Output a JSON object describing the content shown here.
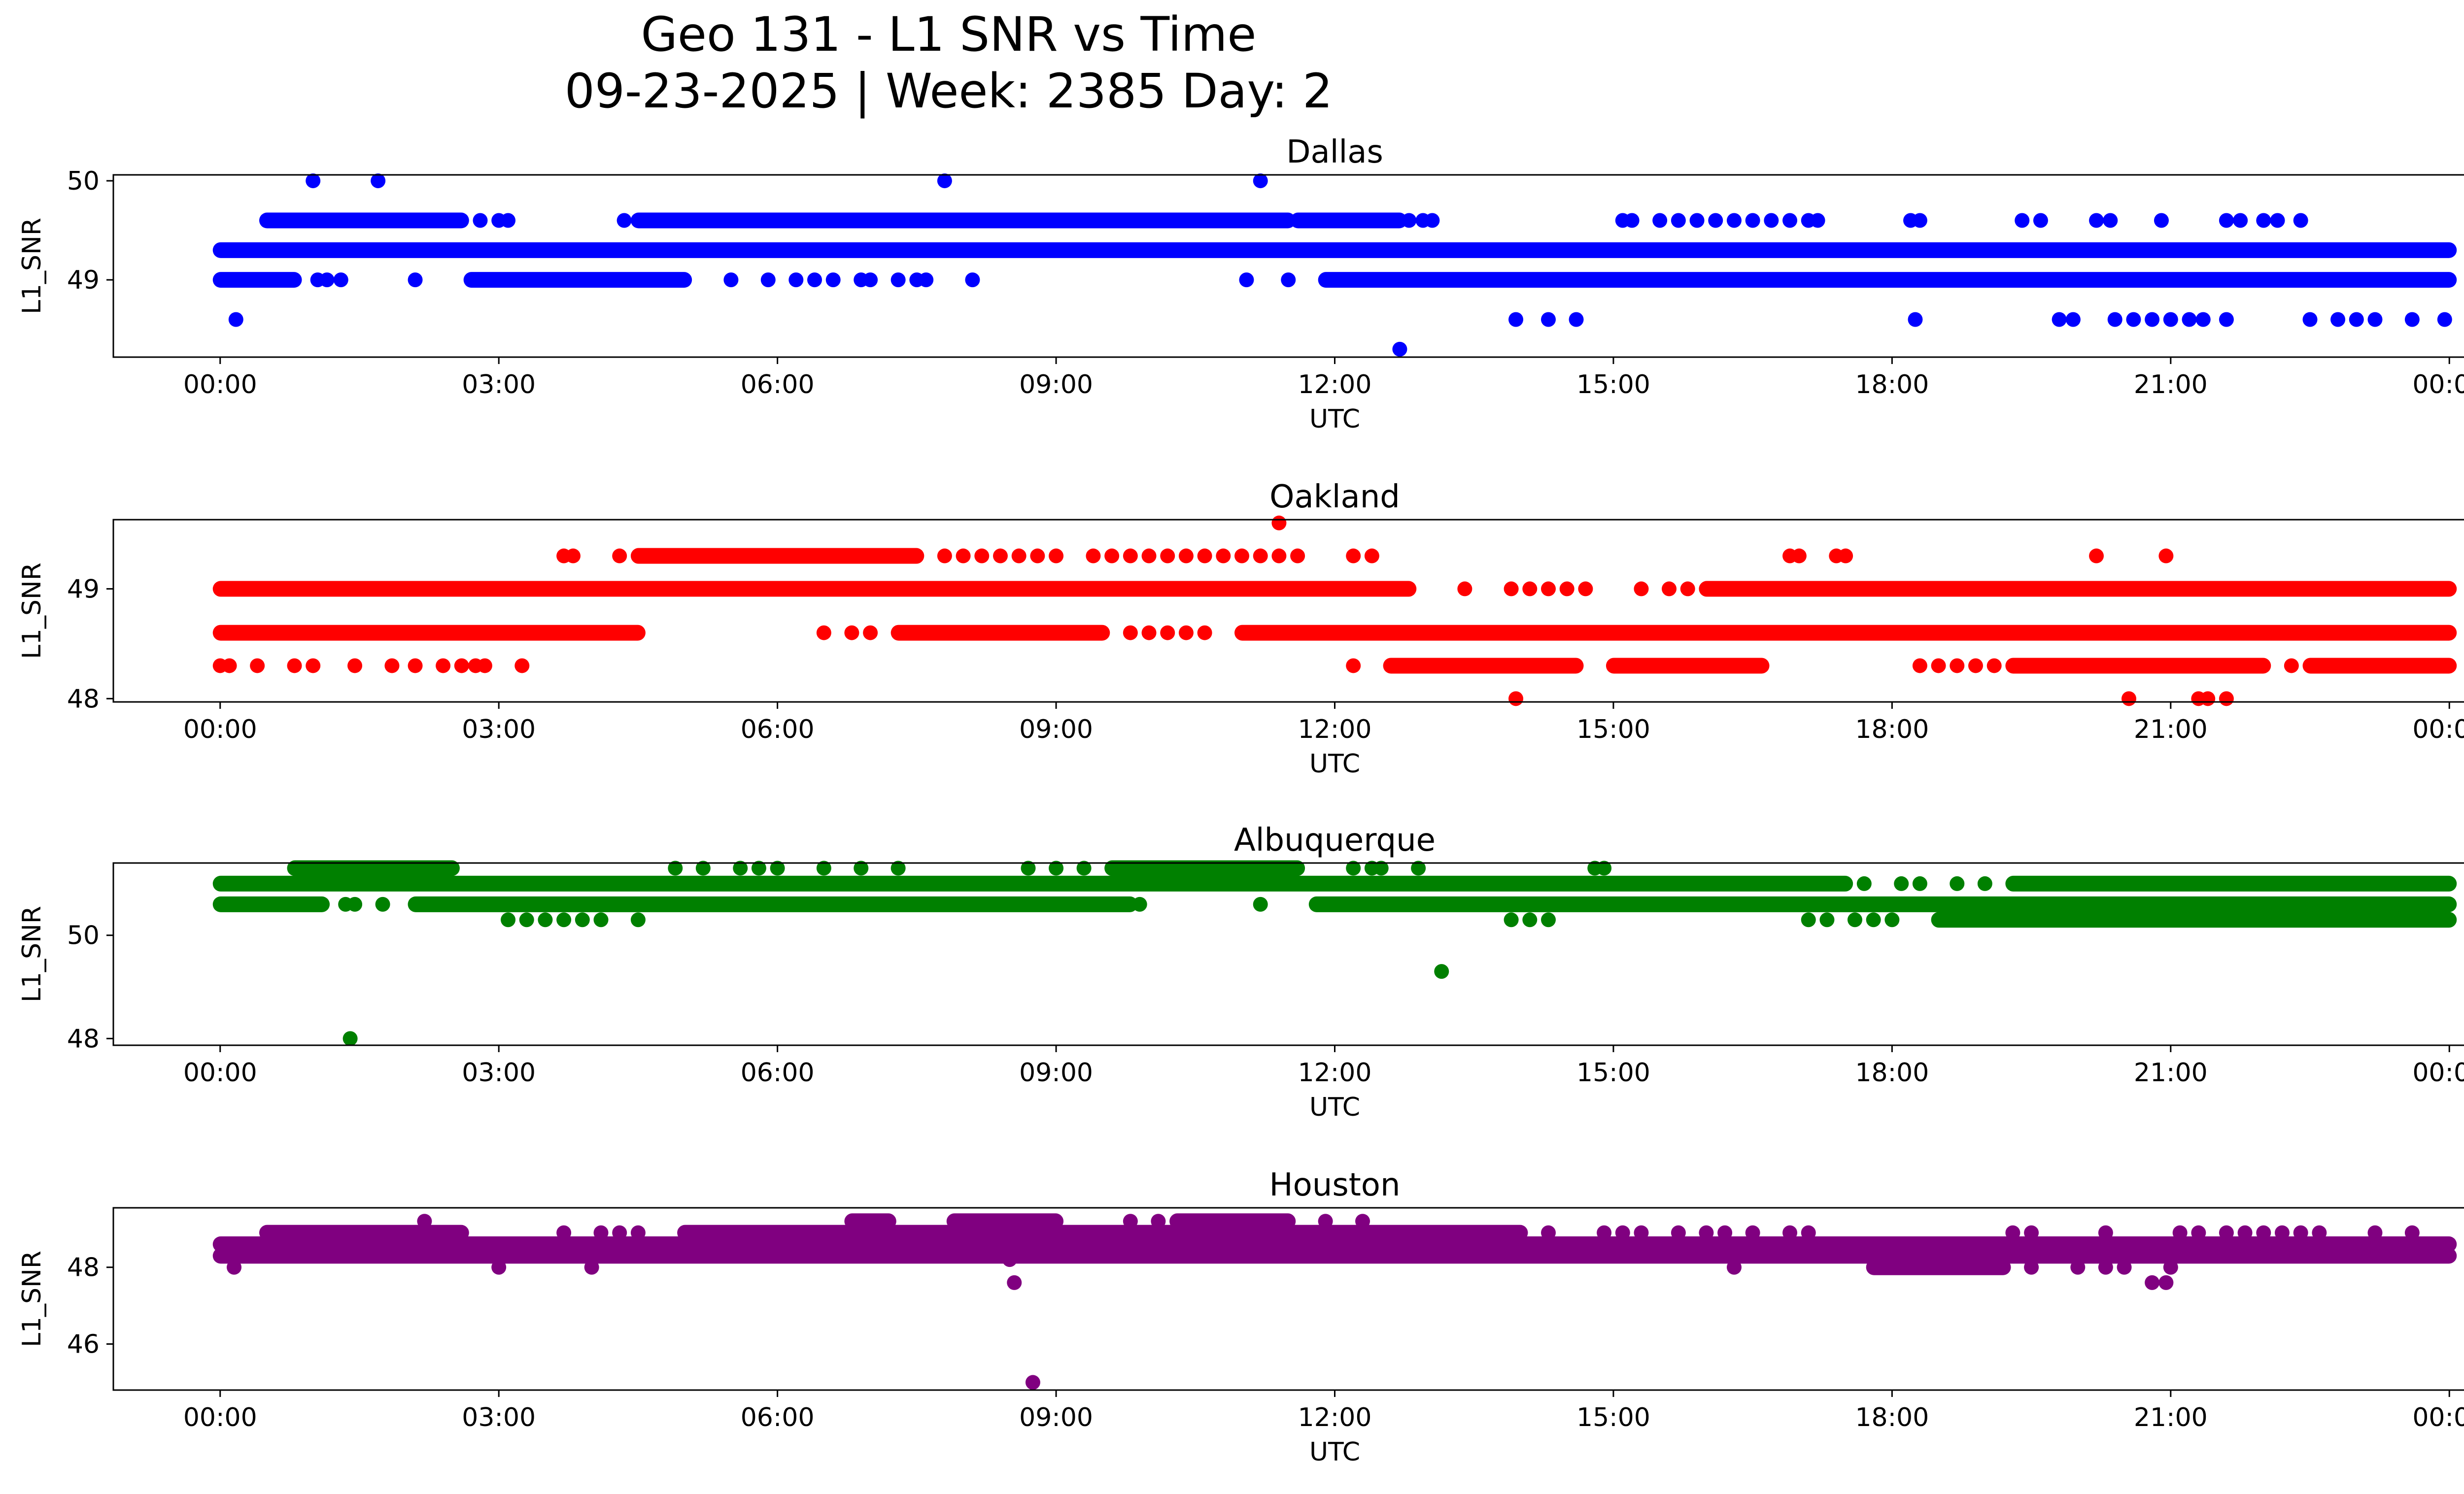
{
  "figure": {
    "title_line1": "Geo 131 - L1 SNR vs Time",
    "title_line2": "09-23-2025 | Week: 2385 Day: 2"
  },
  "chart_data": [
    {
      "type": "scatter",
      "title": "Dallas",
      "xlabel": "UTC",
      "ylabel": "L1_SNR",
      "color": "#0000ff",
      "x_unit": "hours UTC",
      "xlim": [
        -1.15,
        25.15
      ],
      "ylim": [
        48.22,
        50.06
      ],
      "yticks": [
        49,
        50
      ],
      "ytick_labels": [
        "49",
        "50"
      ],
      "xticks": [
        0,
        3,
        6,
        9,
        12,
        15,
        18,
        21,
        24
      ],
      "xtick_labels": [
        "00:00",
        "03:00",
        "06:00",
        "09:00",
        "12:00",
        "15:00",
        "18:00",
        "21:00",
        "00:00"
      ],
      "bands": [
        {
          "y": 49.3,
          "x": [
            0,
            24
          ]
        },
        {
          "y": 49.0,
          "x": [
            0,
            0.8
          ]
        },
        {
          "y": 49.0,
          "x": [
            2.7,
            5.0
          ]
        },
        {
          "y": 49.0,
          "x": [
            11.9,
            24
          ]
        },
        {
          "y": 49.6,
          "x": [
            0.5,
            2.6
          ]
        },
        {
          "y": 49.6,
          "x": [
            4.5,
            11.5
          ]
        },
        {
          "y": 49.6,
          "x": [
            11.6,
            12.7
          ]
        }
      ],
      "points": [
        [
          0.17,
          48.6
        ],
        [
          1.0,
          50.0
        ],
        [
          1.7,
          50.0
        ],
        [
          7.8,
          50.0
        ],
        [
          11.2,
          50.0
        ],
        [
          12.7,
          48.3
        ],
        [
          1.05,
          49.0
        ],
        [
          1.15,
          49.0
        ],
        [
          1.3,
          49.0
        ],
        [
          2.1,
          49.0
        ],
        [
          5.5,
          49.0
        ],
        [
          5.9,
          49.0
        ],
        [
          6.2,
          49.0
        ],
        [
          6.4,
          49.0
        ],
        [
          6.6,
          49.0
        ],
        [
          6.9,
          49.0
        ],
        [
          7.0,
          49.0
        ],
        [
          7.3,
          49.0
        ],
        [
          7.5,
          49.0
        ],
        [
          7.6,
          49.0
        ],
        [
          8.1,
          49.0
        ],
        [
          11.05,
          49.0
        ],
        [
          11.5,
          49.0
        ],
        [
          2.8,
          49.6
        ],
        [
          3.0,
          49.6
        ],
        [
          3.1,
          49.6
        ],
        [
          4.35,
          49.6
        ],
        [
          12.8,
          49.6
        ],
        [
          12.95,
          49.6
        ],
        [
          13.05,
          49.6
        ],
        [
          15.1,
          49.6
        ],
        [
          15.2,
          49.6
        ],
        [
          15.5,
          49.6
        ],
        [
          15.7,
          49.6
        ],
        [
          15.9,
          49.6
        ],
        [
          16.1,
          49.6
        ],
        [
          16.3,
          49.6
        ],
        [
          16.5,
          49.6
        ],
        [
          16.7,
          49.6
        ],
        [
          16.9,
          49.6
        ],
        [
          17.1,
          49.6
        ],
        [
          17.2,
          49.6
        ],
        [
          18.2,
          49.6
        ],
        [
          18.3,
          49.6
        ],
        [
          19.4,
          49.6
        ],
        [
          19.6,
          49.6
        ],
        [
          20.2,
          49.6
        ],
        [
          20.35,
          49.6
        ],
        [
          20.9,
          49.6
        ],
        [
          21.6,
          49.6
        ],
        [
          21.75,
          49.6
        ],
        [
          22.0,
          49.6
        ],
        [
          22.15,
          49.6
        ],
        [
          22.4,
          49.6
        ],
        [
          13.95,
          48.6
        ],
        [
          14.3,
          48.6
        ],
        [
          14.6,
          48.6
        ],
        [
          18.25,
          48.6
        ],
        [
          19.8,
          48.6
        ],
        [
          19.95,
          48.6
        ],
        [
          20.4,
          48.6
        ],
        [
          20.6,
          48.6
        ],
        [
          20.8,
          48.6
        ],
        [
          21.0,
          48.6
        ],
        [
          21.2,
          48.6
        ],
        [
          21.35,
          48.6
        ],
        [
          21.6,
          48.6
        ],
        [
          22.5,
          48.6
        ],
        [
          22.8,
          48.6
        ],
        [
          23.0,
          48.6
        ],
        [
          23.2,
          48.6
        ],
        [
          23.6,
          48.6
        ],
        [
          23.95,
          48.6
        ]
      ]
    },
    {
      "type": "scatter",
      "title": "Oakland",
      "xlabel": "UTC",
      "ylabel": "L1_SNR",
      "color": "#ff0000",
      "x_unit": "hours UTC",
      "xlim": [
        -1.15,
        25.15
      ],
      "ylim": [
        47.97,
        49.63
      ],
      "yticks": [
        48,
        49
      ],
      "ytick_labels": [
        "48",
        "49"
      ],
      "xticks": [
        0,
        3,
        6,
        9,
        12,
        15,
        18,
        21,
        24
      ],
      "xtick_labels": [
        "00:00",
        "03:00",
        "06:00",
        "09:00",
        "12:00",
        "15:00",
        "18:00",
        "21:00",
        "00:00"
      ],
      "bands": [
        {
          "y": 49.0,
          "x": [
            0,
            12.8
          ]
        },
        {
          "y": 49.0,
          "x": [
            16.0,
            24
          ]
        },
        {
          "y": 48.6,
          "x": [
            0,
            4.5
          ]
        },
        {
          "y": 48.6,
          "x": [
            7.3,
            9.5
          ]
        },
        {
          "y": 48.6,
          "x": [
            11.0,
            24
          ]
        },
        {
          "y": 49.3,
          "x": [
            4.5,
            7.5
          ]
        },
        {
          "y": 48.3,
          "x": [
            12.6,
            14.6
          ]
        },
        {
          "y": 48.3,
          "x": [
            15.0,
            16.6
          ]
        },
        {
          "y": 48.3,
          "x": [
            19.3,
            22.0
          ]
        },
        {
          "y": 48.3,
          "x": [
            22.5,
            24
          ]
        }
      ],
      "points": [
        [
          11.4,
          49.6
        ],
        [
          3.7,
          49.3
        ],
        [
          3.8,
          49.3
        ],
        [
          4.3,
          49.3
        ],
        [
          7.8,
          49.3
        ],
        [
          8.0,
          49.3
        ],
        [
          8.2,
          49.3
        ],
        [
          8.4,
          49.3
        ],
        [
          8.6,
          49.3
        ],
        [
          8.8,
          49.3
        ],
        [
          9.0,
          49.3
        ],
        [
          9.4,
          49.3
        ],
        [
          9.6,
          49.3
        ],
        [
          9.8,
          49.3
        ],
        [
          10.0,
          49.3
        ],
        [
          10.2,
          49.3
        ],
        [
          10.4,
          49.3
        ],
        [
          10.6,
          49.3
        ],
        [
          10.8,
          49.3
        ],
        [
          11.0,
          49.3
        ],
        [
          11.2,
          49.3
        ],
        [
          11.4,
          49.3
        ],
        [
          11.6,
          49.3
        ],
        [
          12.2,
          49.3
        ],
        [
          12.4,
          49.3
        ],
        [
          16.9,
          49.3
        ],
        [
          17.0,
          49.3
        ],
        [
          17.4,
          49.3
        ],
        [
          17.5,
          49.3
        ],
        [
          20.2,
          49.3
        ],
        [
          20.95,
          49.3
        ],
        [
          13.4,
          49.0
        ],
        [
          13.9,
          49.0
        ],
        [
          14.1,
          49.0
        ],
        [
          14.3,
          49.0
        ],
        [
          14.5,
          49.0
        ],
        [
          14.7,
          49.0
        ],
        [
          15.3,
          49.0
        ],
        [
          15.6,
          49.0
        ],
        [
          15.8,
          49.0
        ],
        [
          6.5,
          48.6
        ],
        [
          6.8,
          48.6
        ],
        [
          7.0,
          48.6
        ],
        [
          9.8,
          48.6
        ],
        [
          10.0,
          48.6
        ],
        [
          10.2,
          48.6
        ],
        [
          10.4,
          48.6
        ],
        [
          10.6,
          48.6
        ],
        [
          0.0,
          48.3
        ],
        [
          0.1,
          48.3
        ],
        [
          0.4,
          48.3
        ],
        [
          0.8,
          48.3
        ],
        [
          1.0,
          48.3
        ],
        [
          1.45,
          48.3
        ],
        [
          1.85,
          48.3
        ],
        [
          2.1,
          48.3
        ],
        [
          2.4,
          48.3
        ],
        [
          2.6,
          48.3
        ],
        [
          2.75,
          48.3
        ],
        [
          2.85,
          48.3
        ],
        [
          3.25,
          48.3
        ],
        [
          12.2,
          48.3
        ],
        [
          18.3,
          48.3
        ],
        [
          18.5,
          48.3
        ],
        [
          18.7,
          48.3
        ],
        [
          18.9,
          48.3
        ],
        [
          19.1,
          48.3
        ],
        [
          22.3,
          48.3
        ],
        [
          13.95,
          48.0
        ],
        [
          20.55,
          48.0
        ],
        [
          21.3,
          48.0
        ],
        [
          21.4,
          48.0
        ],
        [
          21.6,
          48.0
        ]
      ]
    },
    {
      "type": "scatter",
      "title": "Albuquerque",
      "xlabel": "UTC",
      "ylabel": "L1_SNR",
      "color": "#008000",
      "x_unit": "hours UTC",
      "xlim": [
        -1.15,
        25.15
      ],
      "ylim": [
        47.87,
        51.4
      ],
      "yticks": [
        48,
        50
      ],
      "ytick_labels": [
        "48",
        "50"
      ],
      "xticks": [
        0,
        3,
        6,
        9,
        12,
        15,
        18,
        21,
        24
      ],
      "xtick_labels": [
        "00:00",
        "03:00",
        "06:00",
        "09:00",
        "12:00",
        "15:00",
        "18:00",
        "21:00",
        "00:00"
      ],
      "bands": [
        {
          "y": 51.0,
          "x": [
            0,
            17.5
          ]
        },
        {
          "y": 51.0,
          "x": [
            19.3,
            24
          ]
        },
        {
          "y": 50.6,
          "x": [
            0,
            1.1
          ]
        },
        {
          "y": 50.6,
          "x": [
            2.1,
            9.8
          ]
        },
        {
          "y": 50.6,
          "x": [
            11.8,
            24
          ]
        },
        {
          "y": 50.3,
          "x": [
            18.5,
            24
          ]
        },
        {
          "y": 51.3,
          "x": [
            0.8,
            2.5
          ]
        },
        {
          "y": 51.3,
          "x": [
            9.6,
            11.6
          ]
        }
      ],
      "points": [
        [
          1.4,
          48.0
        ],
        [
          13.15,
          49.3
        ],
        [
          1.35,
          50.6
        ],
        [
          1.45,
          50.6
        ],
        [
          1.75,
          50.6
        ],
        [
          9.9,
          50.6
        ],
        [
          11.2,
          50.6
        ],
        [
          3.1,
          50.3
        ],
        [
          3.3,
          50.3
        ],
        [
          3.5,
          50.3
        ],
        [
          3.7,
          50.3
        ],
        [
          3.9,
          50.3
        ],
        [
          4.1,
          50.3
        ],
        [
          4.5,
          50.3
        ],
        [
          13.9,
          50.3
        ],
        [
          14.1,
          50.3
        ],
        [
          14.3,
          50.3
        ],
        [
          17.1,
          50.3
        ],
        [
          17.3,
          50.3
        ],
        [
          17.6,
          50.3
        ],
        [
          17.8,
          50.3
        ],
        [
          18.0,
          50.3
        ],
        [
          4.9,
          51.3
        ],
        [
          5.2,
          51.3
        ],
        [
          5.6,
          51.3
        ],
        [
          5.8,
          51.3
        ],
        [
          6.0,
          51.3
        ],
        [
          6.5,
          51.3
        ],
        [
          6.9,
          51.3
        ],
        [
          7.3,
          51.3
        ],
        [
          8.7,
          51.3
        ],
        [
          9.0,
          51.3
        ],
        [
          9.3,
          51.3
        ],
        [
          12.2,
          51.3
        ],
        [
          12.4,
          51.3
        ],
        [
          12.5,
          51.3
        ],
        [
          12.9,
          51.3
        ],
        [
          14.8,
          51.3
        ],
        [
          14.9,
          51.3
        ],
        [
          17.7,
          51.0
        ],
        [
          18.1,
          51.0
        ],
        [
          18.3,
          51.0
        ],
        [
          18.7,
          51.0
        ],
        [
          19.0,
          51.0
        ]
      ]
    },
    {
      "type": "scatter",
      "title": "Houston",
      "xlabel": "UTC",
      "ylabel": "L1_SNR",
      "color": "#800080",
      "x_unit": "hours UTC",
      "xlim": [
        -1.15,
        25.15
      ],
      "ylim": [
        44.8,
        49.55
      ],
      "yticks": [
        46,
        48
      ],
      "ytick_labels": [
        "46",
        "48"
      ],
      "xticks": [
        0,
        3,
        6,
        9,
        12,
        15,
        18,
        21,
        24
      ],
      "xtick_labels": [
        "00:00",
        "03:00",
        "06:00",
        "09:00",
        "12:00",
        "15:00",
        "18:00",
        "21:00",
        "00:00"
      ],
      "bands": [
        {
          "y": 48.6,
          "x": [
            0,
            24
          ]
        },
        {
          "y": 48.3,
          "x": [
            0,
            24
          ]
        },
        {
          "y": 48.9,
          "x": [
            0.5,
            2.6
          ]
        },
        {
          "y": 48.9,
          "x": [
            5.0,
            14.0
          ]
        },
        {
          "y": 49.2,
          "x": [
            6.8,
            7.2
          ]
        },
        {
          "y": 49.2,
          "x": [
            7.9,
            9.0
          ]
        },
        {
          "y": 49.2,
          "x": [
            10.3,
            11.5
          ]
        },
        {
          "y": 48.0,
          "x": [
            17.8,
            19.2
          ]
        }
      ],
      "points": [
        [
          8.75,
          45.0
        ],
        [
          8.55,
          47.6
        ],
        [
          20.8,
          47.6
        ],
        [
          20.95,
          47.6
        ],
        [
          8.5,
          48.2
        ],
        [
          0.15,
          48.0
        ],
        [
          3.0,
          48.0
        ],
        [
          4.0,
          48.0
        ],
        [
          16.3,
          48.0
        ],
        [
          19.5,
          48.0
        ],
        [
          20.0,
          48.0
        ],
        [
          20.3,
          48.0
        ],
        [
          20.5,
          48.0
        ],
        [
          21.0,
          48.0
        ],
        [
          2.2,
          49.2
        ],
        [
          9.8,
          49.2
        ],
        [
          10.1,
          49.2
        ],
        [
          10.5,
          49.2
        ],
        [
          11.0,
          49.2
        ],
        [
          11.9,
          49.2
        ],
        [
          12.3,
          49.2
        ],
        [
          3.7,
          48.9
        ],
        [
          4.1,
          48.9
        ],
        [
          4.3,
          48.9
        ],
        [
          4.5,
          48.9
        ],
        [
          14.3,
          48.9
        ],
        [
          14.9,
          48.9
        ],
        [
          15.1,
          48.9
        ],
        [
          15.3,
          48.9
        ],
        [
          15.7,
          48.9
        ],
        [
          16.0,
          48.9
        ],
        [
          16.2,
          48.9
        ],
        [
          16.5,
          48.9
        ],
        [
          16.9,
          48.9
        ],
        [
          17.1,
          48.9
        ],
        [
          19.3,
          48.9
        ],
        [
          19.5,
          48.9
        ],
        [
          20.3,
          48.9
        ],
        [
          21.1,
          48.9
        ],
        [
          21.3,
          48.9
        ],
        [
          21.6,
          48.9
        ],
        [
          21.8,
          48.9
        ],
        [
          22.0,
          48.9
        ],
        [
          22.2,
          48.9
        ],
        [
          22.4,
          48.9
        ],
        [
          22.6,
          48.9
        ],
        [
          23.2,
          48.9
        ],
        [
          23.6,
          48.9
        ]
      ]
    }
  ]
}
